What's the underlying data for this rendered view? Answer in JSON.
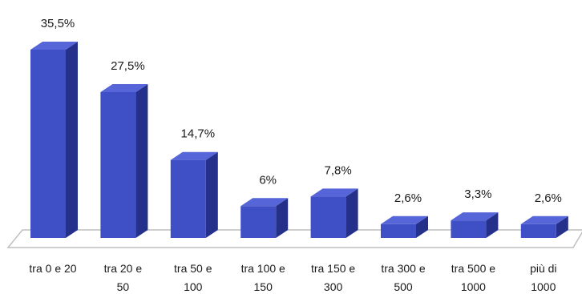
{
  "chart_data": {
    "type": "bar",
    "style": "3d",
    "categories": [
      [
        "tra 0 e 20"
      ],
      [
        "tra 20 e",
        "50"
      ],
      [
        "tra 50 e",
        "100"
      ],
      [
        "tra 100 e",
        "150"
      ],
      [
        "tra 150 e",
        "300"
      ],
      [
        "tra 300 e",
        "500"
      ],
      [
        "tra 500 e",
        "1000"
      ],
      [
        "più di",
        "1000"
      ]
    ],
    "values": [
      35.5,
      27.5,
      14.7,
      6,
      7.8,
      2.6,
      3.3,
      2.6
    ],
    "data_labels": [
      "35,5%",
      "27,5%",
      "14,7%",
      "6%",
      "7,8%",
      "2,6%",
      "3,3%",
      "2,6%"
    ],
    "unit": "%",
    "ylim": [
      0,
      35.5
    ],
    "grid": false,
    "legend": "none",
    "colors": {
      "bar_front": "#3f4fc6",
      "bar_side": "#24308a",
      "bar_top": "#5666d9",
      "floor_line": "#bfbfbf"
    }
  }
}
